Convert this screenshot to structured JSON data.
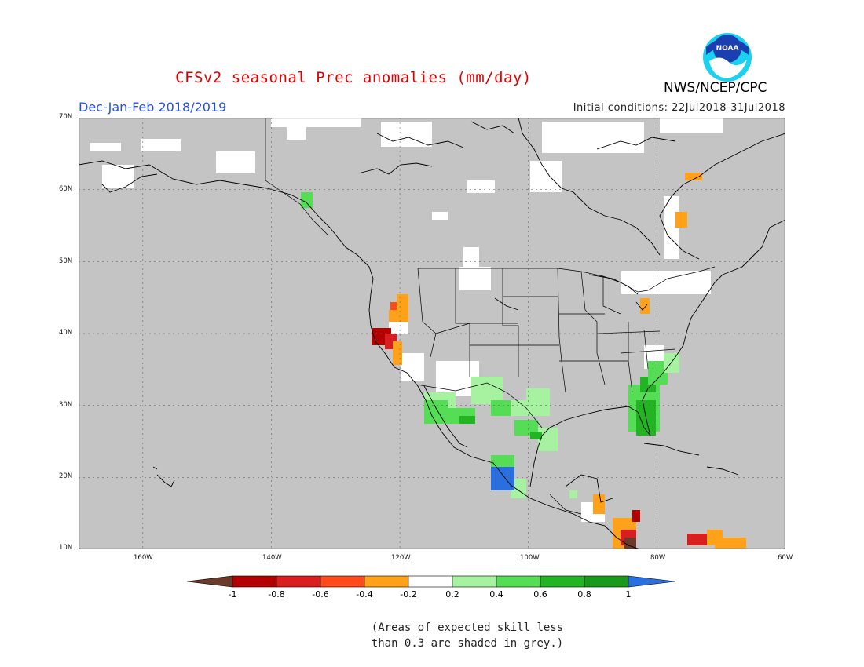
{
  "title": "CFSv2 seasonal Prec anomalies (mm/day)",
  "season": "Dec-Jan-Feb 2018/2019",
  "initial_conditions": "Initial conditions: 22Jul2018-31Jul2018",
  "agency": "NWS/NCEP/CPC",
  "logo_text": "NOAA",
  "latitude_labels": [
    "70N",
    "60N",
    "50N",
    "40N",
    "30N",
    "20N",
    "10N"
  ],
  "longitude_labels": [
    "160W",
    "140W",
    "120W",
    "100W",
    "80W",
    "60W"
  ],
  "colorbar": {
    "labels": [
      "-1",
      "-0.8",
      "-0.6",
      "-0.4",
      "-0.2",
      "0.2",
      "0.4",
      "0.6",
      "0.8",
      "1"
    ],
    "colors": [
      "#6b3a2a",
      "#b30000",
      "#d81e1e",
      "#ff4a1c",
      "#ffa21a",
      "#ffffff",
      "#a6f2a0",
      "#55dd55",
      "#22b422",
      "#1a9a1a",
      "#2a6fe0"
    ]
  },
  "note_lines": [
    "(Areas of expected skill less",
    "than 0.3 are shaded in grey.)"
  ],
  "colors": {
    "grey_mask": "#c4c4c4",
    "title_red": "#e00000",
    "season_blue": "#2850e0"
  }
}
